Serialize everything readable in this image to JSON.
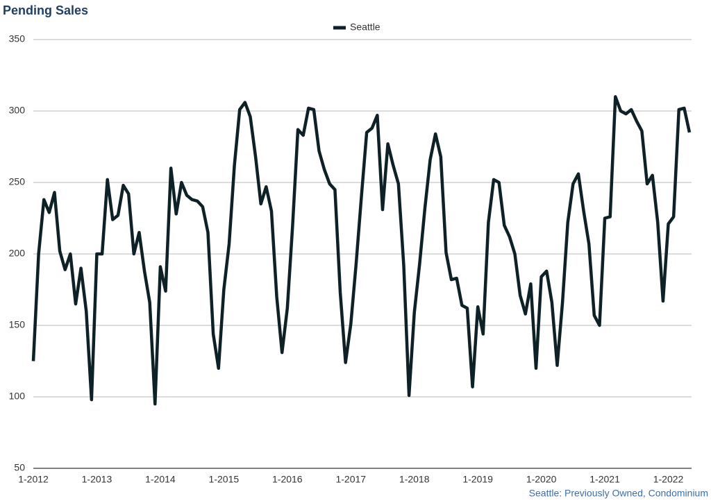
{
  "chart_data": {
    "type": "line",
    "title": "Pending Sales",
    "footnote": "Seattle: Previously Owned, Condominium",
    "categories": [
      "1-2012",
      null,
      null,
      null,
      null,
      null,
      null,
      null,
      null,
      null,
      null,
      null,
      "1-2013",
      null,
      null,
      null,
      null,
      null,
      null,
      null,
      null,
      null,
      null,
      null,
      "1-2014",
      null,
      null,
      null,
      null,
      null,
      null,
      null,
      null,
      null,
      null,
      null,
      "1-2015",
      null,
      null,
      null,
      null,
      null,
      null,
      null,
      null,
      null,
      null,
      null,
      "1-2016",
      null,
      null,
      null,
      null,
      null,
      null,
      null,
      null,
      null,
      null,
      null,
      "1-2017",
      null,
      null,
      null,
      null,
      null,
      null,
      null,
      null,
      null,
      null,
      null,
      "1-2018",
      null,
      null,
      null,
      null,
      null,
      null,
      null,
      null,
      null,
      null,
      null,
      "1-2019",
      null,
      null,
      null,
      null,
      null,
      null,
      null,
      null,
      null,
      null,
      null,
      "1-2020",
      null,
      null,
      null,
      null,
      null,
      null,
      null,
      null,
      null,
      null,
      null,
      "1-2021",
      null,
      null,
      null,
      null,
      null,
      null,
      null,
      null,
      null,
      null,
      null,
      "1-2022",
      null,
      null,
      null,
      null
    ],
    "series": [
      {
        "name": "Seattle",
        "color": "#0e2127",
        "values": [
          125,
          200,
          238,
          229,
          243,
          202,
          189,
          200,
          165,
          190,
          160,
          98,
          200,
          200,
          252,
          224,
          227,
          248,
          242,
          200,
          215,
          188,
          166,
          95,
          191,
          174,
          260,
          228,
          250,
          241,
          238,
          237,
          233,
          215,
          144,
          120,
          175,
          207,
          262,
          301,
          306,
          296,
          268,
          235,
          247,
          230,
          170,
          131,
          162,
          220,
          287,
          283,
          302,
          301,
          272,
          259,
          249,
          245,
          173,
          124,
          151,
          193,
          240,
          285,
          288,
          297,
          231,
          277,
          262,
          249,
          192,
          101,
          159,
          193,
          232,
          266,
          284,
          268,
          201,
          182,
          183,
          164,
          162,
          107,
          163,
          144,
          222,
          252,
          250,
          220,
          212,
          200,
          171,
          158,
          179,
          120,
          184,
          188,
          166,
          122,
          166,
          222,
          249,
          256,
          230,
          207,
          157,
          150,
          225,
          226,
          310,
          300,
          298,
          301,
          293,
          286,
          249,
          255,
          222,
          167,
          221,
          226,
          301,
          302,
          285
        ]
      }
    ],
    "ylim": [
      50,
      350
    ],
    "yticks": [
      50,
      100,
      150,
      200,
      250,
      300,
      350
    ],
    "grid": true,
    "legend": "top"
  }
}
